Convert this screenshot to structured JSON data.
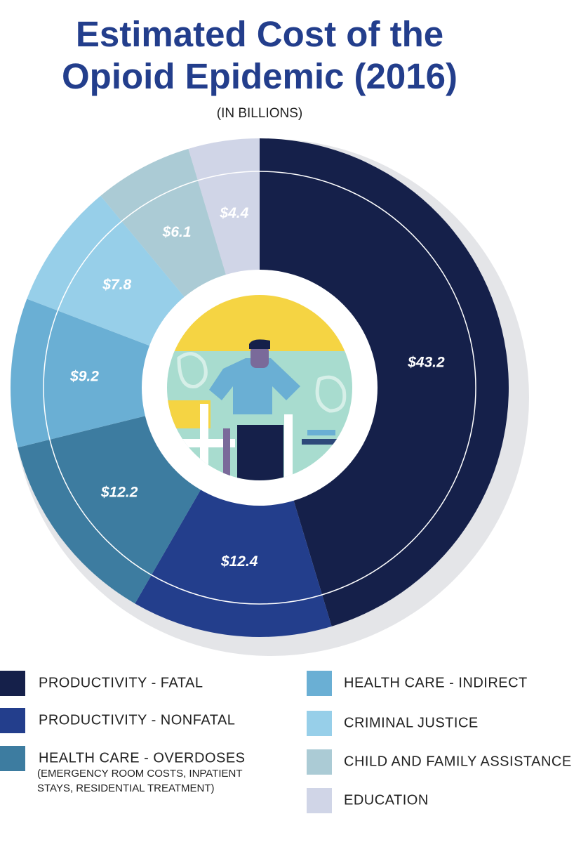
{
  "chart_data": {
    "type": "donut",
    "title": [
      "Estimated Cost of the",
      "Opioid Epidemic (2016)"
    ],
    "subtitle": "(IN BILLIONS)",
    "categories": [
      "PRODUCTIVITY - FATAL",
      "PRODUCTIVITY - NONFATAL",
      "HEALTH CARE - OVERDOSES",
      "HEALTH CARE - INDIRECT",
      "CRIMINAL JUSTICE",
      "CHILD AND FAMILY ASSISTANCE",
      "EDUCATION"
    ],
    "legend_note": [
      "(EMERGENCY ROOM COSTS, INPATIENT",
      " STAYS, RESIDENTIAL TREATMENT)"
    ],
    "values": [
      43.2,
      12.4,
      12.2,
      9.2,
      7.8,
      6.1,
      4.4
    ],
    "value_labels": [
      "$43.2",
      "$12.4",
      "$12.2",
      "$9.2",
      "$7.8",
      "$6.1",
      "$4.4"
    ],
    "colors": [
      "#15204a",
      "#233e8c",
      "#3d7ca0",
      "#6aafd4",
      "#97cfe9",
      "#abcbd5",
      "#d0d5e7"
    ]
  }
}
